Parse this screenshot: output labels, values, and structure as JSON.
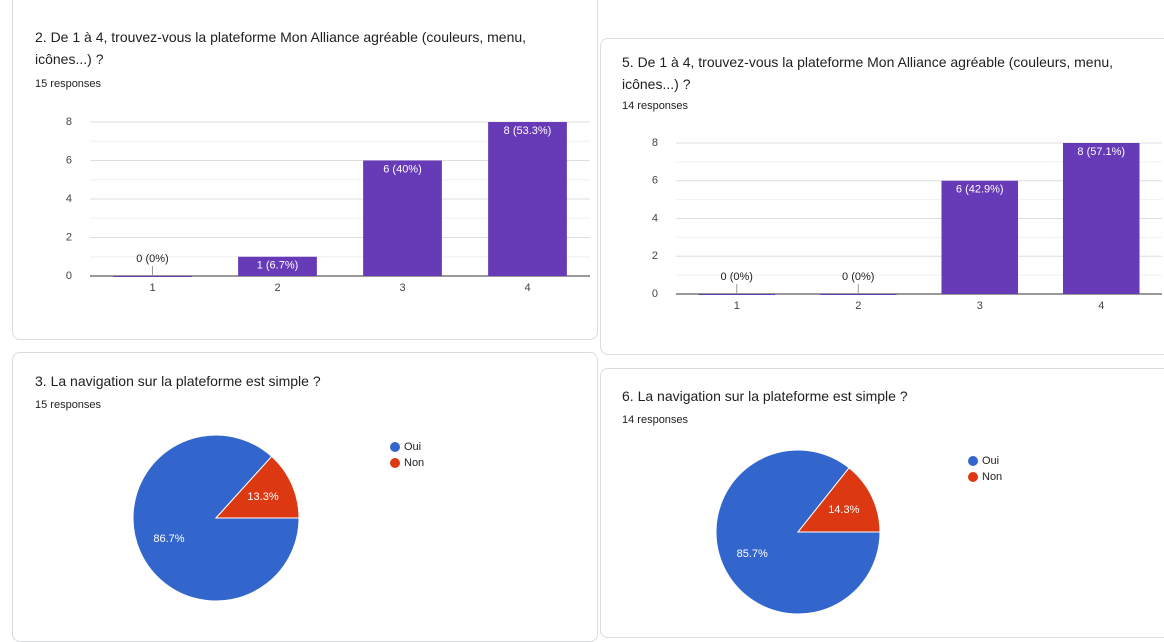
{
  "chart_data": [
    {
      "type": "bar",
      "title": "2. De 1 à 4, trouvez-vous la plateforme Mon Alliance agréable (couleurs, menu, icônes...) ?",
      "subtitle": "15 responses",
      "categories": [
        "1",
        "2",
        "3",
        "4"
      ],
      "values": [
        0,
        1,
        6,
        8
      ],
      "value_labels": [
        "0 (0%)",
        "1 (6.7%)",
        "6 (40%)",
        "8 (53.3%)"
      ],
      "color": "#673ab7",
      "ylim": [
        0,
        8
      ],
      "yticks": [
        0,
        2,
        4,
        6,
        8
      ],
      "grid": true
    },
    {
      "type": "bar",
      "title": "5. De 1 à 4, trouvez-vous la plateforme Mon Alliance agréable (couleurs, menu, icônes...) ?",
      "subtitle": "14 responses",
      "categories": [
        "1",
        "2",
        "3",
        "4"
      ],
      "values": [
        0,
        0,
        6,
        8
      ],
      "value_labels": [
        "0 (0%)",
        "0 (0%)",
        "6 (42.9%)",
        "8 (57.1%)"
      ],
      "color": "#673ab7",
      "ylim": [
        0,
        8
      ],
      "yticks": [
        0,
        2,
        4,
        6,
        8
      ],
      "grid": true
    },
    {
      "type": "pie",
      "title": "3. La navigation sur la plateforme est simple ?",
      "subtitle": "15 responses",
      "categories": [
        "Oui",
        "Non"
      ],
      "values": [
        86.7,
        13.3
      ],
      "value_labels": [
        "86.7%",
        "13.3%"
      ],
      "colors": [
        "#3366cc",
        "#dc3912"
      ]
    },
    {
      "type": "pie",
      "title": "6. La navigation sur la plateforme est simple ?",
      "subtitle": "14 responses",
      "categories": [
        "Oui",
        "Non"
      ],
      "values": [
        85.7,
        14.3
      ],
      "value_labels": [
        "85.7%",
        "14.3%"
      ],
      "colors": [
        "#3366cc",
        "#dc3912"
      ]
    }
  ]
}
